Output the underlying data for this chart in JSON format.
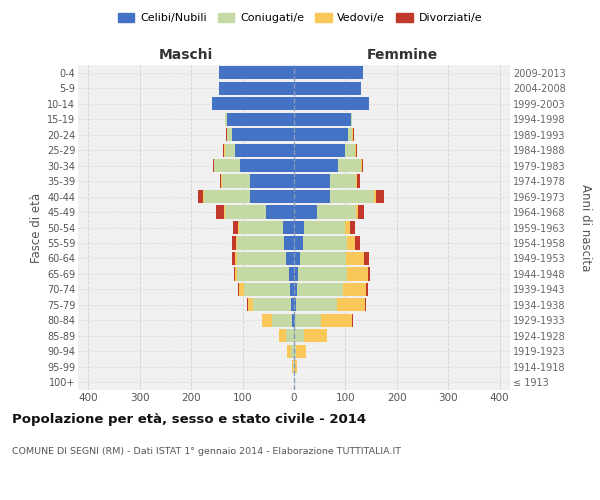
{
  "age_groups": [
    "100+",
    "95-99",
    "90-94",
    "85-89",
    "80-84",
    "75-79",
    "70-74",
    "65-69",
    "60-64",
    "55-59",
    "50-54",
    "45-49",
    "40-44",
    "35-39",
    "30-34",
    "25-29",
    "20-24",
    "15-19",
    "10-14",
    "5-9",
    "0-4"
  ],
  "birth_years": [
    "≤ 1913",
    "1914-1918",
    "1919-1923",
    "1924-1928",
    "1929-1933",
    "1934-1938",
    "1939-1943",
    "1944-1948",
    "1949-1953",
    "1954-1958",
    "1959-1963",
    "1964-1968",
    "1969-1973",
    "1974-1978",
    "1979-1983",
    "1984-1988",
    "1989-1993",
    "1994-1998",
    "1999-2003",
    "2004-2008",
    "2009-2013"
  ],
  "maschi": {
    "celibi": [
      0,
      0,
      0,
      0,
      3,
      5,
      8,
      10,
      15,
      20,
      22,
      55,
      85,
      85,
      105,
      115,
      120,
      130,
      160,
      145,
      145
    ],
    "coniugati": [
      0,
      2,
      5,
      15,
      40,
      75,
      90,
      100,
      95,
      90,
      85,
      80,
      90,
      55,
      50,
      20,
      10,
      5,
      0,
      0,
      0
    ],
    "vedovi": [
      0,
      2,
      8,
      15,
      20,
      10,
      8,
      5,
      5,
      3,
      2,
      2,
      2,
      1,
      1,
      1,
      1,
      0,
      0,
      0,
      0
    ],
    "divorziati": [
      0,
      0,
      0,
      0,
      0,
      2,
      2,
      2,
      5,
      8,
      10,
      15,
      10,
      2,
      2,
      2,
      1,
      0,
      0,
      0,
      0
    ]
  },
  "femmine": {
    "nubili": [
      0,
      0,
      0,
      0,
      2,
      3,
      5,
      8,
      12,
      18,
      20,
      45,
      70,
      70,
      85,
      100,
      105,
      110,
      145,
      130,
      135
    ],
    "coniugate": [
      0,
      0,
      3,
      20,
      50,
      80,
      90,
      95,
      90,
      85,
      80,
      75,
      85,
      50,
      45,
      18,
      8,
      3,
      0,
      0,
      0
    ],
    "vedove": [
      0,
      5,
      20,
      45,
      60,
      55,
      45,
      40,
      35,
      15,
      8,
      5,
      5,
      3,
      2,
      2,
      2,
      0,
      0,
      0,
      0
    ],
    "divorziate": [
      0,
      0,
      0,
      0,
      2,
      2,
      4,
      4,
      8,
      10,
      10,
      12,
      15,
      5,
      3,
      2,
      1,
      0,
      0,
      0,
      0
    ]
  },
  "colors": {
    "celibi": "#4472C4",
    "coniugati": "#C5D9A4",
    "vedovi": "#FAC858",
    "divorziati": "#C0392B"
  },
  "legend_labels": [
    "Celibi/Nubili",
    "Coniugati/e",
    "Vedovi/e",
    "Divorziati/e"
  ],
  "xlim": 420,
  "title": "Popolazione per età, sesso e stato civile - 2014",
  "subtitle": "COMUNE DI SEGNI (RM) - Dati ISTAT 1° gennaio 2014 - Elaborazione TUTTITALIA.IT",
  "ylabel_left": "Fasce di età",
  "ylabel_right": "Anni di nascita",
  "xlabel_left": "Maschi",
  "xlabel_right": "Femmine",
  "bg_color": "#ffffff",
  "plot_bg_color": "#f0f0f0",
  "grid_color": "#cccccc"
}
